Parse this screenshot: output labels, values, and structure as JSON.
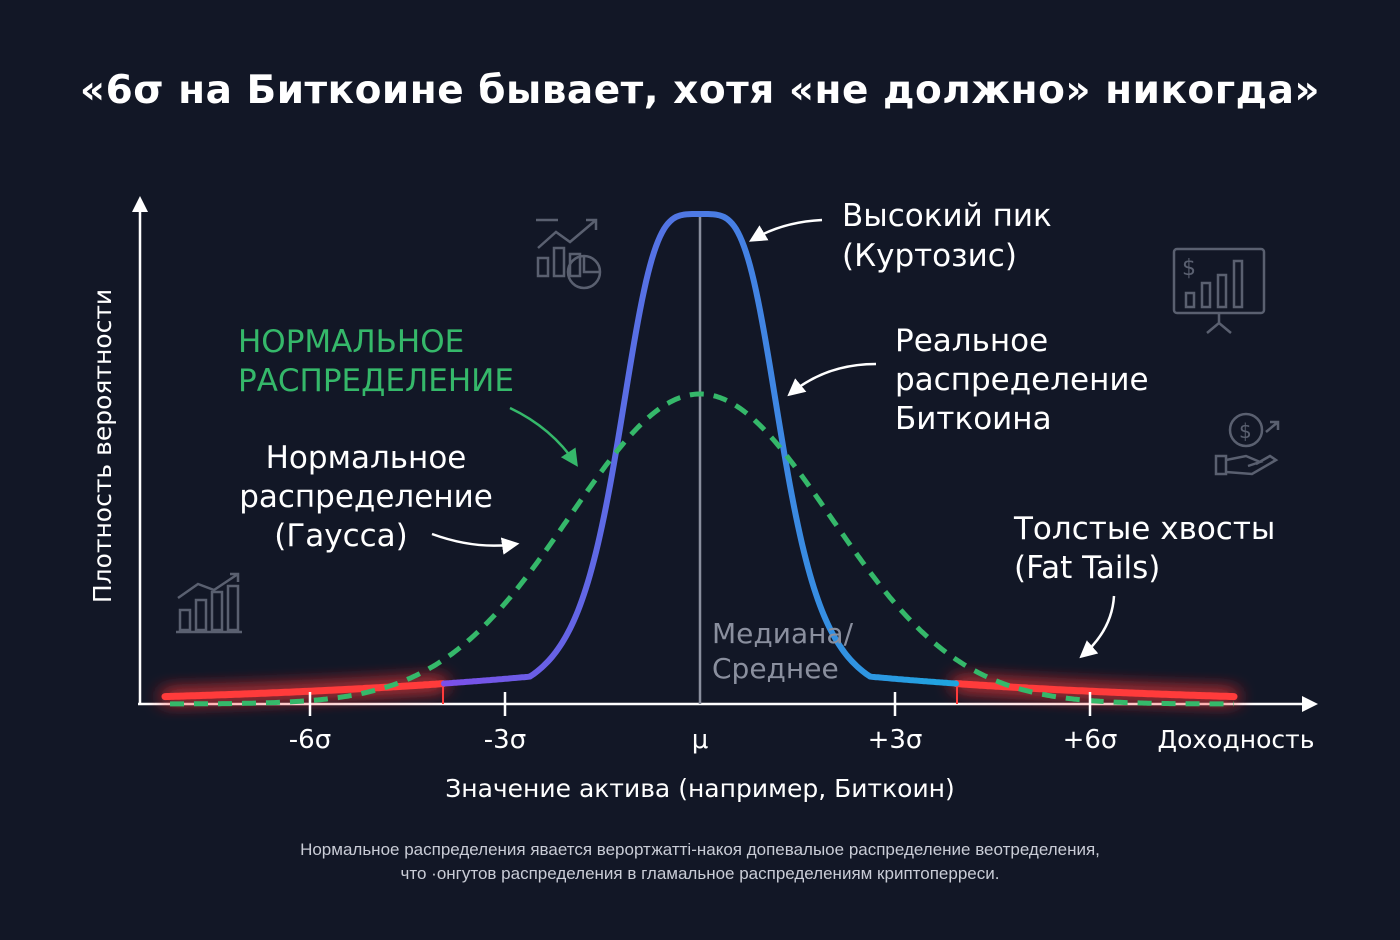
{
  "title": "«6σ на Биткоине бывает, хотя «не должно» никогда»",
  "colors": {
    "background": "#121726",
    "normal": "#35b86a",
    "real_start": "#7b4fe8",
    "real_end": "#1ea5e0",
    "tails": "#ff3b3b",
    "axis": "#ffffff",
    "median_line": "#8a8f9e",
    "icon": "#5a6070"
  },
  "axes": {
    "y_label": "Плотность вероятности",
    "x_label": "Значение актива (например, Биткоин)",
    "x_end_label": "Доходность",
    "ticks": [
      "-6σ",
      "-3σ",
      "μ",
      "+3σ",
      "+6σ"
    ]
  },
  "annotations": {
    "peak": [
      "Высокий пик",
      "(Куртозис)"
    ],
    "real": [
      "Реальное",
      "распределение",
      "Биткоина"
    ],
    "normal_green": [
      "НОРМАЛЬНОЕ",
      "РАСПРЕДЕЛЕНИЕ"
    ],
    "normal_gauss": [
      "Нормальное",
      "распределение",
      "(Гаусса)"
    ],
    "fat_tails": [
      "Толстые хвосты",
      "(Fat Tails)"
    ],
    "median": [
      "Медиана/",
      "Среднее"
    ]
  },
  "icons": [
    "growth-chart-icon",
    "dollar-presentation-icon",
    "dollar-hand-icon",
    "bar-chart-icon"
  ],
  "footer": [
    "Нормальное распределения явается верортжатті-накоя допевалыое распределение веотределения,",
    "что ·онгутов распределения в гламальное распределениям криптоперреси."
  ]
}
